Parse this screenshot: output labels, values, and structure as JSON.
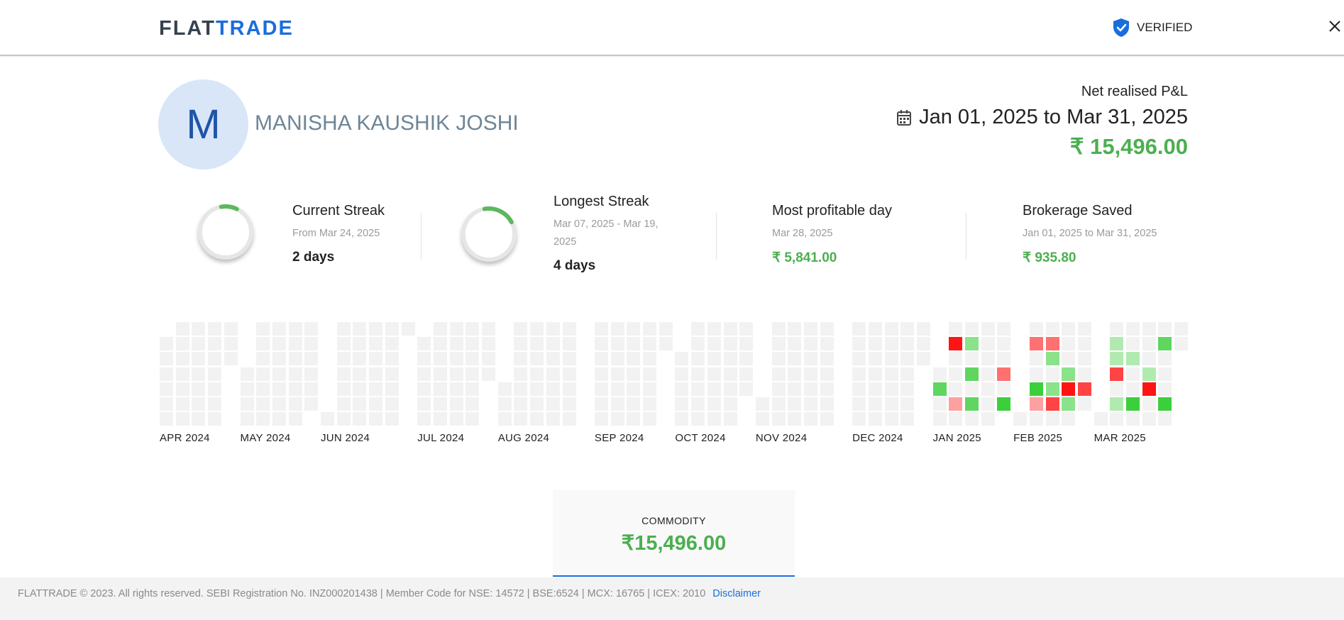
{
  "header": {
    "logo_part1": "FLAT",
    "logo_part2": "TRADE",
    "verified_label": "VERIFIED",
    "close_icon": "close-icon",
    "verified_icon": "shield-check-icon"
  },
  "profile": {
    "initial": "M",
    "name": "MANISHA KAUSHIK JOSHI"
  },
  "pnl": {
    "label": "Net realised P&L",
    "range": "Jan 01, 2025 to Mar 31, 2025",
    "amount": "₹ 15,496.00",
    "icon": "calendar-icon"
  },
  "stats": {
    "current": {
      "title": "Current Streak",
      "sub": "From Mar 24, 2025",
      "value": "2 days",
      "arc_fraction": 0.1
    },
    "longest": {
      "title": "Longest Streak",
      "sub": "Mar 07, 2025 - Mar 19, 2025",
      "value": "4 days",
      "arc_fraction": 0.2
    },
    "profitable": {
      "title": "Most profitable day",
      "sub": "Mar 28, 2025",
      "value": "₹ 5,841.00"
    },
    "brokerage": {
      "title": "Brokerage Saved",
      "sub": "Jan 01, 2025 to Mar 31, 2025",
      "value": "₹ 935.80"
    }
  },
  "colors": {
    "empty": "#f2f2f2",
    "profit": [
      "#b0eab0",
      "#8ae28a",
      "#5fd65f",
      "#3ccf3c"
    ],
    "loss": [
      "#ffa0a0",
      "#ff7070",
      "#ff4444",
      "#ff1414"
    ],
    "green": "#4caf50",
    "accent": "#1a6ddc"
  },
  "heatmap": {
    "months": [
      {
        "label": "APR 2024",
        "year": 2024,
        "month": 4
      },
      {
        "label": "MAY 2024",
        "year": 2024,
        "month": 5
      },
      {
        "label": "JUN 2024",
        "year": 2024,
        "month": 6
      },
      {
        "label": "JUL 2024",
        "year": 2024,
        "month": 7
      },
      {
        "label": "AUG 2024",
        "year": 2024,
        "month": 8
      },
      {
        "label": "SEP 2024",
        "year": 2024,
        "month": 9
      },
      {
        "label": "OCT 2024",
        "year": 2024,
        "month": 10
      },
      {
        "label": "NOV 2024",
        "year": 2024,
        "month": 11
      },
      {
        "label": "DEC 2024",
        "year": 2024,
        "month": 12
      },
      {
        "label": "JAN 2025",
        "year": 2025,
        "month": 1
      },
      {
        "label": "FEB 2025",
        "year": 2025,
        "month": 2
      },
      {
        "label": "MAR 2025",
        "year": 2025,
        "month": 3
      }
    ],
    "days": [
      {
        "date": "2025-01-02",
        "kind": "profit",
        "level": 3
      },
      {
        "date": "2025-01-06",
        "kind": "loss",
        "level": 4
      },
      {
        "date": "2025-01-10",
        "kind": "loss",
        "level": 1
      },
      {
        "date": "2025-01-13",
        "kind": "profit",
        "level": 2
      },
      {
        "date": "2025-01-15",
        "kind": "profit",
        "level": 3
      },
      {
        "date": "2025-01-17",
        "kind": "profit",
        "level": 3
      },
      {
        "date": "2025-01-29",
        "kind": "loss",
        "level": 2
      },
      {
        "date": "2025-01-31",
        "kind": "profit",
        "level": 4
      },
      {
        "date": "2025-02-03",
        "kind": "loss",
        "level": 2
      },
      {
        "date": "2025-02-06",
        "kind": "profit",
        "level": 4
      },
      {
        "date": "2025-02-07",
        "kind": "loss",
        "level": 1
      },
      {
        "date": "2025-02-10",
        "kind": "loss",
        "level": 2
      },
      {
        "date": "2025-02-11",
        "kind": "profit",
        "level": 2
      },
      {
        "date": "2025-02-13",
        "kind": "profit",
        "level": 2
      },
      {
        "date": "2025-02-14",
        "kind": "loss",
        "level": 3
      },
      {
        "date": "2025-02-19",
        "kind": "profit",
        "level": 2
      },
      {
        "date": "2025-02-20",
        "kind": "loss",
        "level": 4
      },
      {
        "date": "2025-02-21",
        "kind": "profit",
        "level": 2
      },
      {
        "date": "2025-02-27",
        "kind": "loss",
        "level": 3
      },
      {
        "date": "2025-03-03",
        "kind": "profit",
        "level": 1
      },
      {
        "date": "2025-03-04",
        "kind": "profit",
        "level": 1
      },
      {
        "date": "2025-03-05",
        "kind": "loss",
        "level": 3
      },
      {
        "date": "2025-03-07",
        "kind": "profit",
        "level": 1
      },
      {
        "date": "2025-03-11",
        "kind": "profit",
        "level": 1
      },
      {
        "date": "2025-03-14",
        "kind": "profit",
        "level": 4
      },
      {
        "date": "2025-03-19",
        "kind": "profit",
        "level": 1
      },
      {
        "date": "2025-03-20",
        "kind": "loss",
        "level": 4
      },
      {
        "date": "2025-03-24",
        "kind": "profit",
        "level": 3
      },
      {
        "date": "2025-03-28",
        "kind": "profit",
        "level": 4
      }
    ]
  },
  "segment": {
    "label": "COMMODITY",
    "value": "₹15,496.00"
  },
  "footer": {
    "text": "FLATTRADE © 2023. All rights reserved. SEBI Registration No. INZ000201438 | Member Code for NSE: 14572 | BSE:6524 | MCX: 16765 | ICEX: 2010",
    "disclaimer": "Disclaimer"
  }
}
